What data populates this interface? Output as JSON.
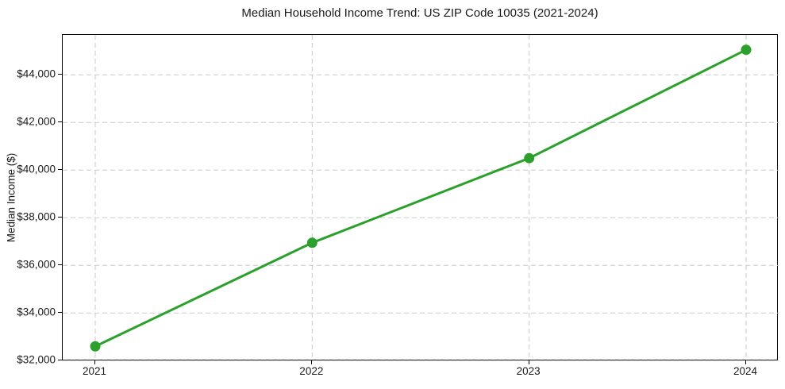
{
  "figure": {
    "title": "Median Household Income Trend: US ZIP Code 10035 (2021-2024)",
    "ylabel": "Median Income ($)"
  },
  "chart_data": {
    "type": "line",
    "title": "Median Household Income Trend: US ZIP Code 10035 (2021-2024)",
    "xlabel": "",
    "ylabel": "Median Income ($)",
    "x": [
      2021,
      2022,
      2023,
      2024
    ],
    "xtick_labels": [
      "2021",
      "2022",
      "2023",
      "2024"
    ],
    "series": [
      {
        "name": "Median Household Income",
        "values": [
          32600,
          36950,
          40500,
          45050
        ]
      }
    ],
    "yticks": [
      32000,
      34000,
      36000,
      38000,
      40000,
      42000,
      44000
    ],
    "ytick_labels": [
      "$32,000",
      "$34,000",
      "$36,000",
      "$38,000",
      "$40,000",
      "$42,000",
      "$44,000"
    ],
    "xlim": [
      2020.85,
      2024.15
    ],
    "ylim": [
      31977,
      45673
    ],
    "grid": true,
    "grid_axes": "both",
    "legend": "none",
    "styles": {
      "line_color": "#2ca02c",
      "line_width": 3,
      "marker": "circle",
      "marker_radius": 6.5,
      "grid_color": "#c9c9c9",
      "grid_style": "dashed",
      "spine_color": "#000000",
      "text_color": "#1a1a1a",
      "background": "#ffffff"
    }
  }
}
